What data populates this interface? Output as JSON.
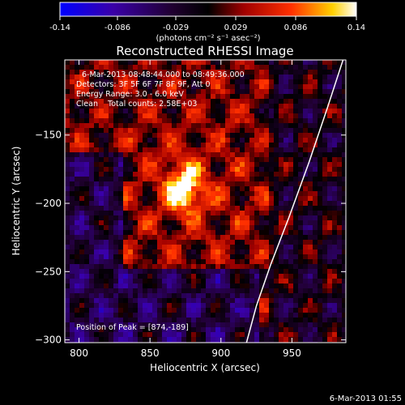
{
  "chart_data": {
    "type": "heatmap",
    "title": "Reconstructed RHESSI Image",
    "xlabel": "Heliocentric X (arcsec)",
    "ylabel": "Heliocentric Y (arcsec)",
    "xlim": [
      790,
      988
    ],
    "ylim": [
      -302,
      -95
    ],
    "x_ticks": [
      800,
      850,
      900,
      950
    ],
    "y_ticks": [
      -150,
      -200,
      -250,
      -300
    ],
    "colorbar": {
      "range": [
        -0.14,
        0.14
      ],
      "ticks": [
        "-0.14",
        "-0.086",
        "-0.029",
        "0.029",
        "0.086",
        "0.14"
      ],
      "unit_label": "(photons cm⁻² s⁻¹ asec⁻²)",
      "colors": [
        "#0000ff",
        "#3a00a8",
        "#200030",
        "#000000",
        "#a00000",
        "#ff3000",
        "#ffd000",
        "#ffffff"
      ]
    },
    "annotations": [
      "6-Mar-2013 08:48:44.000 to 08:49:36.000",
      "Detectors: 3F 5F 6F 7F 8F 9F, Att 0",
      "Energy Range: 3.0 - 6.0 keV",
      "Clean    Total counts: 2.58E+03"
    ],
    "peak_label": "Position of Peak = [874,-189]",
    "peak": {
      "x": 874,
      "y": -189,
      "value": 0.14
    },
    "limb_curve": [
      [
        986,
        -95
      ],
      [
        975,
        -130
      ],
      [
        962,
        -170
      ],
      [
        948,
        -210
      ],
      [
        935,
        -245
      ],
      [
        925,
        -275
      ],
      [
        918,
        -302
      ]
    ],
    "footer_date": "6-Mar-2013 01:55"
  }
}
